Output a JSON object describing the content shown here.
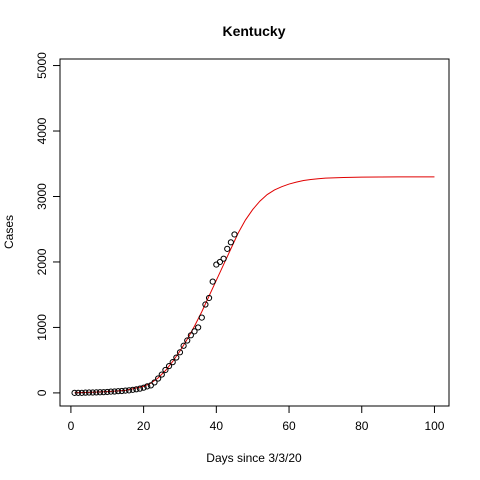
{
  "chart_data": {
    "type": "scatter",
    "title": "Kentucky",
    "xlabel": "Days since 3/3/20",
    "ylabel": "Cases",
    "xlim": [
      -3,
      104
    ],
    "ylim": [
      -200,
      5100
    ],
    "xticks": [
      0,
      20,
      40,
      60,
      80,
      100
    ],
    "yticks": [
      0,
      1000,
      2000,
      3000,
      4000,
      5000
    ],
    "grid": false,
    "series": [
      {
        "kind": "points",
        "x": [
          1,
          2,
          3,
          4,
          5,
          6,
          7,
          8,
          9,
          10,
          11,
          12,
          13,
          14,
          15,
          16,
          17,
          18,
          19,
          20,
          21,
          22,
          23,
          24,
          25,
          26,
          27,
          28,
          29,
          30,
          31,
          32,
          33,
          34,
          35,
          36,
          37,
          38,
          39,
          40,
          41,
          42,
          43,
          44,
          45
        ],
        "y": [
          1,
          1,
          1,
          4,
          6,
          6,
          8,
          10,
          11,
          14,
          20,
          21,
          26,
          29,
          35,
          39,
          47,
          55,
          65,
          80,
          100,
          115,
          160,
          220,
          280,
          350,
          410,
          470,
          540,
          620,
          720,
          800,
          880,
          940,
          1000,
          1150,
          1350,
          1450,
          1700,
          1960,
          2000,
          2050,
          2200,
          2300,
          2420
        ]
      },
      {
        "kind": "line",
        "color": "#e00000",
        "x": [
          1,
          5,
          10,
          15,
          20,
          22,
          24,
          26,
          28,
          30,
          32,
          34,
          36,
          38,
          40,
          42,
          44,
          46,
          48,
          50,
          52,
          54,
          56,
          58,
          60,
          62,
          64,
          66,
          68,
          70,
          75,
          80,
          85,
          90,
          95,
          100
        ],
        "y": [
          2,
          8,
          20,
          38,
          100,
          148,
          230,
          340,
          480,
          640,
          820,
          1020,
          1240,
          1480,
          1720,
          1960,
          2200,
          2440,
          2640,
          2800,
          2930,
          3030,
          3100,
          3150,
          3190,
          3220,
          3245,
          3260,
          3270,
          3280,
          3290,
          3295,
          3298,
          3299,
          3300,
          3300
        ]
      }
    ]
  }
}
